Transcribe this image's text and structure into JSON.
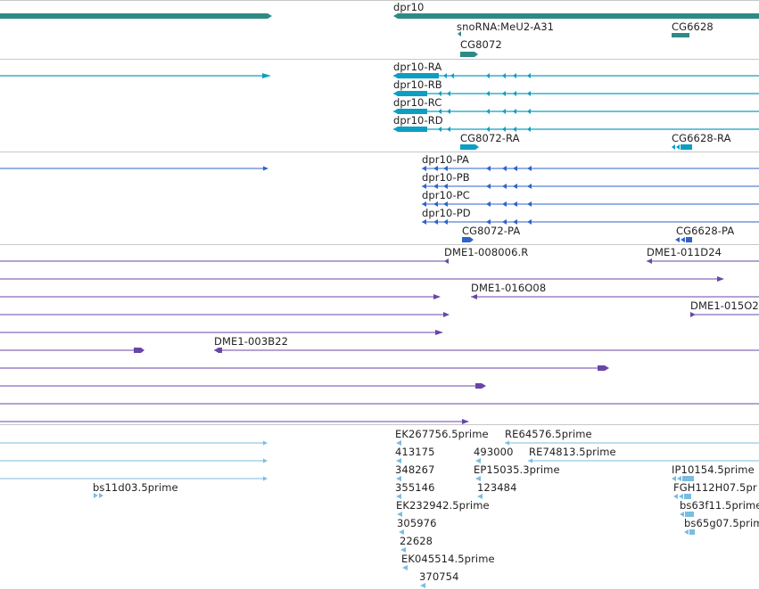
{
  "colors": {
    "gene": "#2f8a86",
    "transcript": "#0d9fc1",
    "protein": "#2e63c9",
    "clone": "#6a45a8",
    "est": "#7bbde0",
    "separator": "#c8c8c8"
  },
  "tracks": {
    "gene": {
      "labels": {
        "dpr10": "dpr10",
        "snorna": "snoRNA:MeU2-A31",
        "cg8072": "CG8072",
        "cg6628": "CG6628"
      }
    },
    "transcript": {
      "labels": {
        "ra": "dpr10-RA",
        "rb": "dpr10-RB",
        "rc": "dpr10-RC",
        "rd": "dpr10-RD",
        "cg8072": "CG8072-RA",
        "cg6628": "CG6628-RA"
      }
    },
    "protein": {
      "labels": {
        "pa": "dpr10-PA",
        "pb": "dpr10-PB",
        "pc": "dpr10-PC",
        "pd": "dpr10-PD",
        "cg8072": "CG8072-PA",
        "cg6628": "CG6628-PA"
      }
    },
    "clone": {
      "labels": {
        "c1": "DME1-008006.R",
        "c2": "DME1-011D24",
        "c3": "DME1-016O08",
        "c4": "DME1-015O2",
        "c5": "DME1-003B22"
      }
    },
    "est": {
      "labels": {
        "e1": "EK267756.5prime",
        "e2": "RE64576.5prime",
        "e3": "413175",
        "e4": "493000",
        "e5": "RE74813.5prime",
        "e6": "348267",
        "e7": "EP15035.3prime",
        "e8": "IP10154.5prime",
        "e9": "bs11d03.5prime",
        "e10": "355146",
        "e11": "123484",
        "e12": "FGH112H07.5pr",
        "e13": "EK232942.5prime",
        "e14": "bs63f11.5prime",
        "e15": "305976",
        "e16": "bs65g07.5prime",
        "e17": "22628",
        "e18": "EK045514.5prime",
        "e19": "370754"
      }
    }
  }
}
